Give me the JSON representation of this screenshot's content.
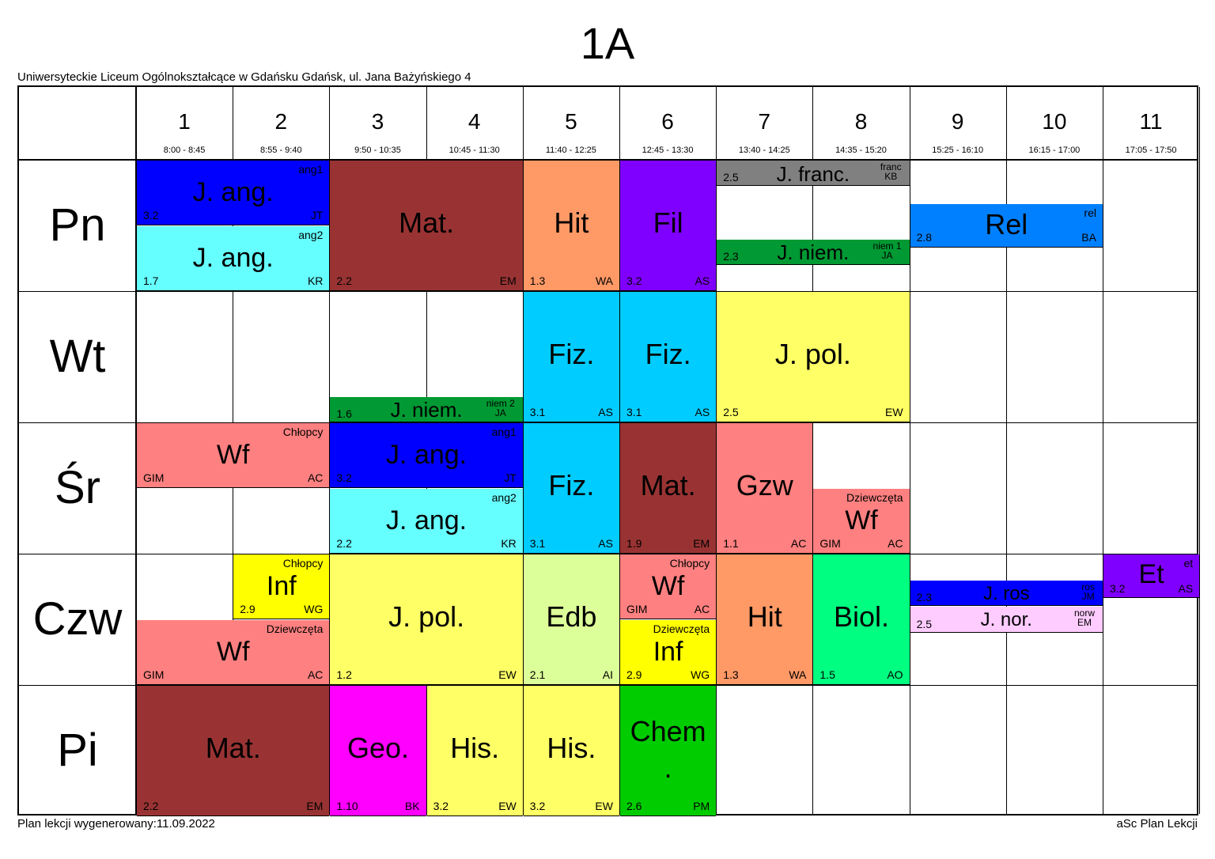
{
  "title": "1A",
  "school": "Uniwersyteckie Liceum Ogólnokształcące w Gdańsku Gdańsk, ul. Jana Bażyńskiego 4",
  "footer_left": "Plan lekcji wygenerowany:11.09.2022",
  "footer_right": "aSc Plan Lekcji",
  "periods": [
    {
      "num": "1",
      "time": "8:00 - 8:45"
    },
    {
      "num": "2",
      "time": "8:55 - 9:40"
    },
    {
      "num": "3",
      "time": "9:50 - 10:35"
    },
    {
      "num": "4",
      "time": "10:45 - 11:30"
    },
    {
      "num": "5",
      "time": "11:40 - 12:25"
    },
    {
      "num": "6",
      "time": "12:45 - 13:30"
    },
    {
      "num": "7",
      "time": "13:40 - 14:25"
    },
    {
      "num": "8",
      "time": "14:35 - 15:20"
    },
    {
      "num": "9",
      "time": "15:25 - 16:10"
    },
    {
      "num": "10",
      "time": "16:15 - 17:00"
    },
    {
      "num": "11",
      "time": "17:05 - 17:50"
    }
  ],
  "days": [
    "Pn",
    "Wt",
    "Śr",
    "Czw",
    "Pi"
  ],
  "lessons": [
    {
      "subject": "J. ang.",
      "group": "ang1",
      "room": "3.2",
      "teacher": "JT",
      "color": "#0000ff"
    },
    {
      "subject": "J. ang.",
      "group": "ang2",
      "room": "1.7",
      "teacher": "KR",
      "color": "#66ffff"
    },
    {
      "subject": "Mat.",
      "group": "",
      "room": "2.2",
      "teacher": "EM",
      "color": "#993333"
    },
    {
      "subject": "Hit",
      "group": "",
      "room": "1.3",
      "teacher": "WA",
      "color": "#ff9966"
    },
    {
      "subject": "Fil",
      "group": "",
      "room": "3.2",
      "teacher": "AS",
      "color": "#8000ff"
    },
    {
      "subject": "J. franc.",
      "group": "franc",
      "room": "2.5",
      "teacher": "KB",
      "color": "#808080"
    },
    {
      "subject": "J. niem.",
      "group": "niem 1",
      "room": "2.3",
      "teacher": "JA",
      "color": "#009933"
    },
    {
      "subject": "Rel",
      "group": "rel",
      "room": "2.8",
      "teacher": "BA",
      "color": "#0080ff"
    },
    {
      "subject": "J. niem.",
      "group": "niem 2",
      "room": "1.6",
      "teacher": "JA",
      "color": "#009933"
    },
    {
      "subject": "Fiz.",
      "group": "",
      "room": "3.1",
      "teacher": "AS",
      "color": "#00ccff"
    },
    {
      "subject": "Fiz.",
      "group": "",
      "room": "3.1",
      "teacher": "AS",
      "color": "#00ccff"
    },
    {
      "subject": "J. pol.",
      "group": "",
      "room": "2.5",
      "teacher": "EW",
      "color": "#ffff66"
    },
    {
      "subject": "Wf",
      "group": "Chłopcy",
      "room": "GIM",
      "teacher": "AC",
      "color": "#ff8080"
    },
    {
      "subject": "J. ang.",
      "group": "ang1",
      "room": "3.2",
      "teacher": "JT",
      "color": "#0000ff"
    },
    {
      "subject": "J. ang.",
      "group": "ang2",
      "room": "2.2",
      "teacher": "KR",
      "color": "#66ffff"
    },
    {
      "subject": "Fiz.",
      "group": "",
      "room": "3.1",
      "teacher": "AS",
      "color": "#00ccff"
    },
    {
      "subject": "Mat.",
      "group": "",
      "room": "1.9",
      "teacher": "EM",
      "color": "#993333"
    },
    {
      "subject": "Gzw",
      "group": "",
      "room": "1.1",
      "teacher": "AC",
      "color": "#ff8080"
    },
    {
      "subject": "Wf",
      "group": "Dziewczęta",
      "room": "GIM",
      "teacher": "AC",
      "color": "#ff8080"
    },
    {
      "subject": "Inf",
      "group": "Chłopcy",
      "room": "2.9",
      "teacher": "WG",
      "color": "#ffff00"
    },
    {
      "subject": "Wf",
      "group": "Dziewczęta",
      "room": "GIM",
      "teacher": "AC",
      "color": "#ff8080"
    },
    {
      "subject": "J. pol.",
      "group": "",
      "room": "1.2",
      "teacher": "EW",
      "color": "#ffff66"
    },
    {
      "subject": "Edb",
      "group": "",
      "room": "2.1",
      "teacher": "AI",
      "color": "#ddff99"
    },
    {
      "subject": "Wf",
      "group": "Chłopcy",
      "room": "GIM",
      "teacher": "AC",
      "color": "#ff8080"
    },
    {
      "subject": "Inf",
      "group": "Dziewczęta",
      "room": "2.9",
      "teacher": "WG",
      "color": "#ffff00"
    },
    {
      "subject": "Hit",
      "group": "",
      "room": "1.3",
      "teacher": "WA",
      "color": "#ff9966"
    },
    {
      "subject": "Biol.",
      "group": "",
      "room": "1.5",
      "teacher": "AO",
      "color": "#00ff80"
    },
    {
      "subject": "J. ros",
      "group": "ros",
      "room": "2.3",
      "teacher": "JM",
      "color": "#0000ff"
    },
    {
      "subject": "J. nor.",
      "group": "norw",
      "room": "2.5",
      "teacher": "EM",
      "color": "#ffccff"
    },
    {
      "subject": "Et",
      "group": "et",
      "room": "3.2",
      "teacher": "AS",
      "color": "#8000ff"
    },
    {
      "subject": "Mat.",
      "group": "",
      "room": "2.2",
      "teacher": "EM",
      "color": "#993333"
    },
    {
      "subject": "Geo.",
      "group": "",
      "room": "1.10",
      "teacher": "BK",
      "color": "#ff00ff"
    },
    {
      "subject": "His.",
      "group": "",
      "room": "3.2",
      "teacher": "EW",
      "color": "#ffff66"
    },
    {
      "subject": "His.",
      "group": "",
      "room": "3.2",
      "teacher": "EW",
      "color": "#ffff66"
    },
    {
      "subject": "Chem",
      "subject2": ".",
      "group": "",
      "room": "2.6",
      "teacher": "PM",
      "color": "#00cc00"
    }
  ]
}
